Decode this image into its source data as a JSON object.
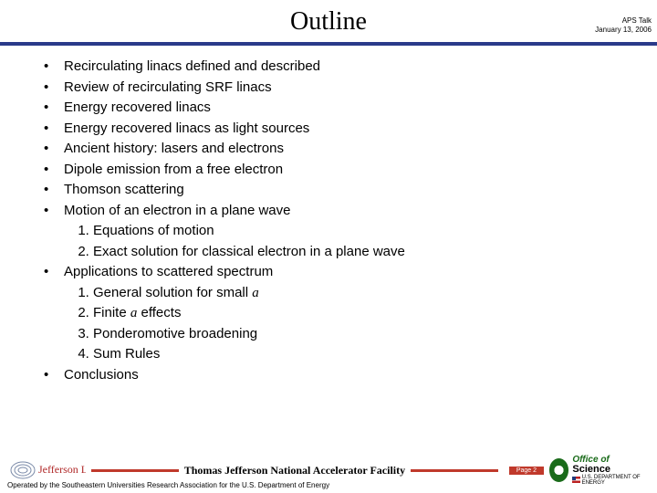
{
  "title": "Outline",
  "header_meta": {
    "line1": "APS Talk",
    "line2": "January 13, 2006"
  },
  "bullets": [
    {
      "text": "Recirculating linacs defined and described"
    },
    {
      "text": "Review of recirculating SRF linacs"
    },
    {
      "text": "Energy recovered linacs"
    },
    {
      "text": "Energy recovered linacs as light sources"
    },
    {
      "text": "Ancient history: lasers and electrons"
    },
    {
      "text": "Dipole emission from a free electron"
    },
    {
      "text": "Thomson scattering"
    },
    {
      "text": "Motion of an electron in a plane wave",
      "sub": [
        "Equations of motion",
        "Exact solution for classical electron in a plane wave"
      ]
    },
    {
      "text_parts": [
        "Applications to scattered spectrum"
      ],
      "sub_rich": [
        {
          "pre": "General solution for small ",
          "ital": "a"
        },
        {
          "pre": "Finite ",
          "ital": "a",
          "post": " effects"
        },
        {
          "pre": "Ponderomotive broadening"
        },
        {
          "pre": "Sum Rules"
        }
      ]
    },
    {
      "text": "Conclusions"
    }
  ],
  "footer": {
    "facility": "Thomas Jefferson National Accelerator Facility",
    "page_badge": "Page 2",
    "operated": "Operated by the Southeastern Universities Research Association for the U.S. Department of  Energy",
    "doe": {
      "t1": "Office of",
      "t2": "Science",
      "sub": "U.S. DEPARTMENT OF ENERGY"
    },
    "jlab": "Jefferson Lab"
  },
  "colors": {
    "rule": "#2a3a8a",
    "accent": "#c0392b",
    "doe_green": "#1a6b1a"
  }
}
